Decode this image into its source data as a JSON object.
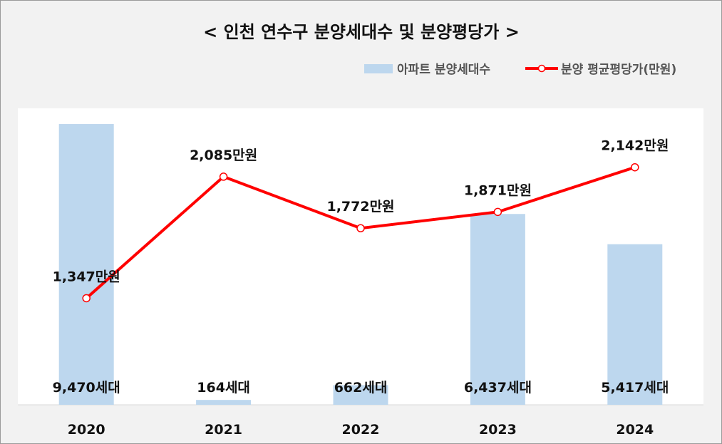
{
  "chart_data": {
    "type": "bar",
    "title": "< 인천 연수구 분양세대수 및 분양평당가 >",
    "categories": [
      "2020",
      "2021",
      "2022",
      "2023",
      "2024"
    ],
    "series": [
      {
        "name": "아파트 분양세대수",
        "type": "bar",
        "axis": "left",
        "color": "#bdd7ee",
        "values": [
          9470,
          164,
          662,
          6437,
          5417
        ],
        "labels": [
          "9,470세대",
          "164세대",
          "662세대",
          "6,437세대",
          "5,417세대"
        ]
      },
      {
        "name": "분양 평균평당가(만원)",
        "type": "line",
        "axis": "right",
        "color": "#ff0000",
        "values": [
          1347,
          2085,
          1772,
          1871,
          2142
        ],
        "labels": [
          "1,347만원",
          "2,085만원",
          "1,772만원",
          "1,871만원",
          "2,142만원"
        ]
      }
    ],
    "ylim_left": [
      0,
      10000
    ],
    "ylim_right": [
      700,
      2500
    ],
    "grid": false,
    "legend_position": "top-right"
  }
}
